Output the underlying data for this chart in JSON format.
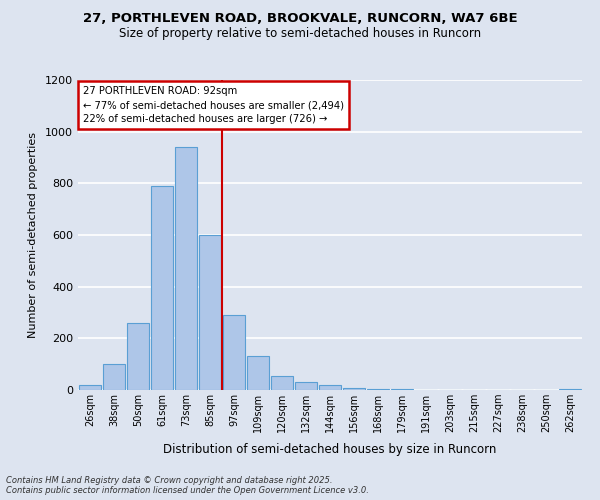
{
  "title_line1": "27, PORTHLEVEN ROAD, BROOKVALE, RUNCORN, WA7 6BE",
  "title_line2": "Size of property relative to semi-detached houses in Runcorn",
  "xlabel": "Distribution of semi-detached houses by size in Runcorn",
  "ylabel": "Number of semi-detached properties",
  "categories": [
    "26sqm",
    "38sqm",
    "50sqm",
    "61sqm",
    "73sqm",
    "85sqm",
    "97sqm",
    "109sqm",
    "120sqm",
    "132sqm",
    "144sqm",
    "156sqm",
    "168sqm",
    "179sqm",
    "191sqm",
    "203sqm",
    "215sqm",
    "227sqm",
    "238sqm",
    "250sqm",
    "262sqm"
  ],
  "values": [
    20,
    100,
    260,
    790,
    940,
    600,
    290,
    130,
    55,
    30,
    18,
    8,
    4,
    2,
    1,
    1,
    0,
    0,
    0,
    0,
    5
  ],
  "bar_color": "#aec6e8",
  "bar_edge_color": "#5a9fd4",
  "annotation_text_line1": "27 PORTHLEVEN ROAD: 92sqm",
  "annotation_text_line2": "← 77% of semi-detached houses are smaller (2,494)",
  "annotation_text_line3": "22% of semi-detached houses are larger (726) →",
  "annotation_box_color": "#ffffff",
  "annotation_box_edge_color": "#cc0000",
  "vline_color": "#cc0000",
  "ylim": [
    0,
    1200
  ],
  "yticks": [
    0,
    200,
    400,
    600,
    800,
    1000,
    1200
  ],
  "footer_line1": "Contains HM Land Registry data © Crown copyright and database right 2025.",
  "footer_line2": "Contains public sector information licensed under the Open Government Licence v3.0.",
  "bg_color": "#dde4f0",
  "plot_bg_color": "#dde4f0",
  "grid_color": "#ffffff"
}
